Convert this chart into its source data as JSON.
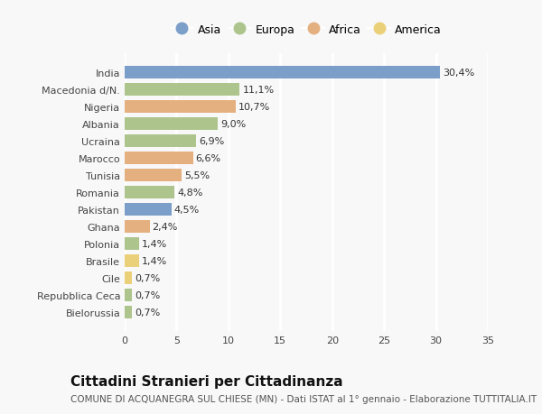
{
  "categories": [
    "India",
    "Macedonia d/N.",
    "Nigeria",
    "Albania",
    "Ucraina",
    "Marocco",
    "Tunisia",
    "Romania",
    "Pakistan",
    "Ghana",
    "Polonia",
    "Brasile",
    "Cile",
    "Repubblica Ceca",
    "Bielorussia"
  ],
  "values": [
    30.4,
    11.1,
    10.7,
    9.0,
    6.9,
    6.6,
    5.5,
    4.8,
    4.5,
    2.4,
    1.4,
    1.4,
    0.7,
    0.7,
    0.7
  ],
  "labels": [
    "30,4%",
    "11,1%",
    "10,7%",
    "9,0%",
    "6,9%",
    "6,6%",
    "5,5%",
    "4,8%",
    "4,5%",
    "2,4%",
    "1,4%",
    "1,4%",
    "0,7%",
    "0,7%",
    "0,7%"
  ],
  "continents": [
    "Asia",
    "Europa",
    "Africa",
    "Europa",
    "Europa",
    "Africa",
    "Africa",
    "Europa",
    "Asia",
    "Africa",
    "Europa",
    "America",
    "America",
    "Europa",
    "Europa"
  ],
  "continent_colors": {
    "Asia": "#7b9fc8",
    "Europa": "#adc48d",
    "Africa": "#e4b080",
    "America": "#ebd07a"
  },
  "legend_order": [
    "Asia",
    "Europa",
    "Africa",
    "America"
  ],
  "title": "Cittadini Stranieri per Cittadinanza",
  "subtitle": "COMUNE DI ACQUANEGRA SUL CHIESE (MN) - Dati ISTAT al 1° gennaio - Elaborazione TUTTITALIA.IT",
  "xlim": [
    0,
    35
  ],
  "xticks": [
    0,
    5,
    10,
    15,
    20,
    25,
    30,
    35
  ],
  "background_color": "#f8f8f8",
  "grid_color": "#ffffff",
  "bar_height": 0.72,
  "title_fontsize": 11,
  "subtitle_fontsize": 7.5,
  "label_fontsize": 8,
  "tick_fontsize": 8,
  "legend_fontsize": 9
}
